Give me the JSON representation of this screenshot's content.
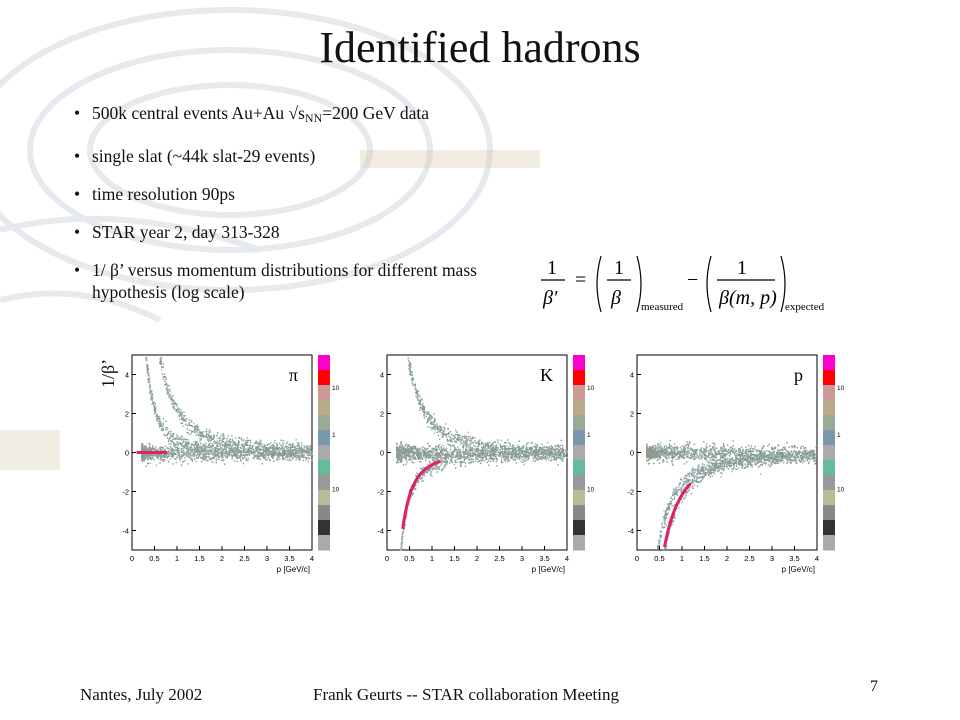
{
  "slide": {
    "title": "Identified hadrons",
    "bullets": [
      {
        "pre": "500k central events Au+Au √s",
        "sub": "NN",
        "post": "=200 GeV data"
      },
      {
        "text": "single slat (~44k slat-29 events)"
      },
      {
        "text": "time resolution 90ps"
      },
      {
        "text": "STAR year 2, day 313-328"
      },
      {
        "text": "1/ β’ versus momentum distributions for different mass hypothesis (log scale)"
      }
    ],
    "bullet_char": "•"
  },
  "formula": {
    "one": "1",
    "beta_prime": "β'",
    "beta": "β",
    "equals": "=",
    "minus": "−",
    "measured": "measured",
    "expected_denominator": "β(m, p)",
    "expected": "expected"
  },
  "plots": {
    "ylabel": "1/β’",
    "xlabel": "p [GeV/c]",
    "xticks": [
      "0",
      "0.5",
      "1",
      "1.5",
      "2",
      "2.5",
      "3",
      "3.5",
      "4"
    ],
    "yticks": [
      "4",
      "2",
      "0",
      "-2",
      "-4"
    ],
    "colorbar_labels": [
      "10",
      "1",
      "10"
    ],
    "panels": [
      {
        "label": "π",
        "hypothesis": "pion",
        "band_color": "#e0206a"
      },
      {
        "label": "K",
        "hypothesis": "kaon",
        "band_color": "#e0206a"
      },
      {
        "label": "p",
        "hypothesis": "proton",
        "band_color": "#e0206a"
      }
    ],
    "colorbar_colors": [
      "#ff00cc",
      "#ff0000",
      "#cc9999",
      "#bbaa88",
      "#99aa99",
      "#7799aa",
      "#aaaaaa",
      "#66bb99",
      "#999999",
      "#bbbb99",
      "#888888",
      "#333333",
      "#aaaaaa"
    ]
  },
  "footer": {
    "left": "Nantes, July  2002",
    "center": "Frank Geurts -- STAR collaboration Meeting",
    "page": "7"
  }
}
